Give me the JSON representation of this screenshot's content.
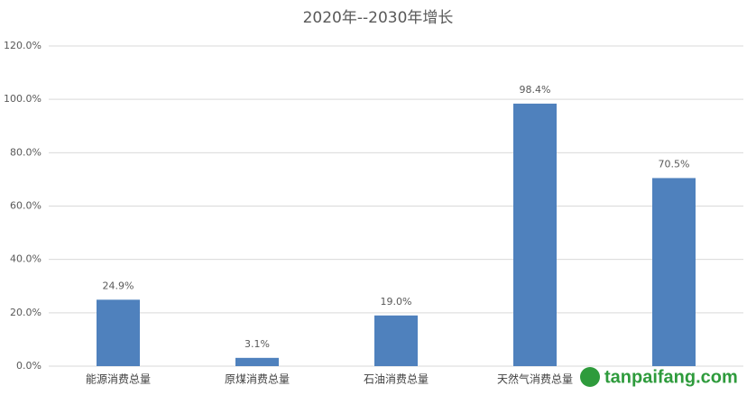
{
  "chart_data": {
    "type": "bar",
    "title": "2020年--2030年增长",
    "categories": [
      "能源消费总量",
      "原煤消费总量",
      "石油消费总量",
      "天然气消费总量",
      null
    ],
    "values": [
      24.9,
      3.1,
      19.0,
      98.4,
      70.5
    ],
    "value_labels": [
      "24.9%",
      "3.1%",
      "19.0%",
      "98.4%",
      "70.5%"
    ],
    "color": "#4f81bd",
    "ylim": [
      0,
      120
    ],
    "yticks": [
      {
        "value": 0,
        "label": "0.0%"
      },
      {
        "value": 20,
        "label": "20.0%"
      },
      {
        "value": 40,
        "label": "40.0%"
      },
      {
        "value": 60,
        "label": "60.0%"
      },
      {
        "value": 80,
        "label": "80.0%"
      },
      {
        "value": 100,
        "label": "100.0%"
      },
      {
        "value": 120,
        "label": "120.0%"
      }
    ],
    "grid": true
  },
  "watermark": "tanpaifang.com"
}
